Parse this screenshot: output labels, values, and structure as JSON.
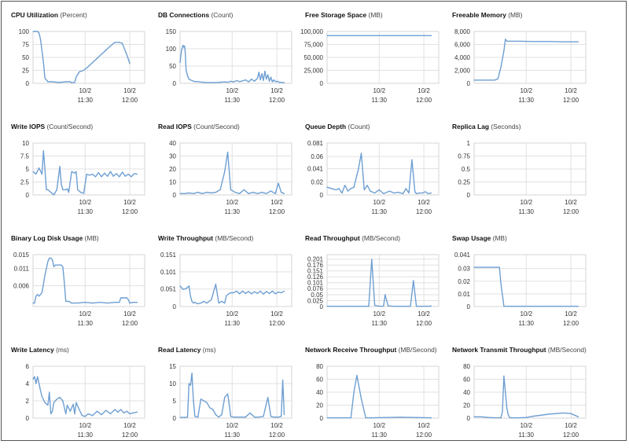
{
  "colors": {
    "series": "#6e9fd2",
    "grid": "#e1e1e1"
  },
  "x_ticks": [
    {
      "t": 35,
      "date": "10/2",
      "time": "11:30"
    },
    {
      "t": 65,
      "date": "10/2",
      "time": "12:00"
    }
  ],
  "charts": [
    {
      "title": "CPU Utilization",
      "unit": "(Percent)",
      "chart_data": {
        "type": "line",
        "xlim": [
          0,
          75
        ],
        "ylim": [
          0,
          100
        ],
        "yticks": [
          "0",
          "25",
          "50",
          "75",
          "100"
        ],
        "x": [
          0,
          3,
          4,
          5,
          7,
          8,
          10,
          13,
          16,
          19,
          22,
          25,
          26,
          28,
          29,
          31,
          34,
          37,
          40,
          43,
          46,
          49,
          52,
          55,
          58,
          60,
          63,
          65
        ],
        "y": [
          100,
          100,
          97,
          85,
          40,
          10,
          3,
          3,
          2,
          2,
          3,
          3,
          1,
          2,
          12,
          22,
          25,
          32,
          40,
          48,
          56,
          64,
          72,
          79,
          79,
          77,
          55,
          38
        ]
      }
    },
    {
      "title": "DB Connections",
      "unit": "(Count)",
      "chart_data": {
        "type": "line",
        "xlim": [
          0,
          75
        ],
        "ylim": [
          0,
          150
        ],
        "yticks": [
          "0",
          "50",
          "100",
          "150"
        ],
        "x": [
          0,
          1,
          2,
          2.5,
          3,
          3.5,
          4,
          5,
          6,
          8,
          10,
          12,
          15,
          18,
          21,
          24,
          27,
          30,
          32,
          34,
          36,
          38,
          40,
          42,
          44,
          46,
          48,
          50,
          52,
          53,
          54,
          55,
          56,
          57,
          58,
          59,
          60,
          61,
          62,
          63,
          64,
          65,
          67,
          69,
          70
        ],
        "y": [
          60,
          95,
          110,
          105,
          108,
          90,
          40,
          22,
          12,
          8,
          5,
          5,
          3,
          2,
          2,
          2,
          3,
          4,
          3,
          6,
          4,
          8,
          5,
          7,
          10,
          4,
          12,
          6,
          15,
          32,
          10,
          28,
          8,
          35,
          12,
          25,
          6,
          18,
          4,
          10,
          5,
          6,
          3,
          2,
          2
        ]
      }
    },
    {
      "title": "Free Storage Space",
      "unit": "(MB)",
      "chart_data": {
        "type": "line",
        "xlim": [
          0,
          75
        ],
        "ylim": [
          0,
          100000
        ],
        "yticks": [
          "0",
          "25,000",
          "50,000",
          "75,000",
          "100,000"
        ],
        "x": [
          0,
          70
        ],
        "y": [
          92000,
          92000
        ]
      }
    },
    {
      "title": "Freeable Memory",
      "unit": "(MB)",
      "chart_data": {
        "type": "line",
        "xlim": [
          0,
          75
        ],
        "ylim": [
          0,
          8000
        ],
        "yticks": [
          "0",
          "2,000",
          "4,000",
          "6,000",
          "8,000"
        ],
        "x": [
          0,
          14,
          16,
          18,
          20,
          21,
          22,
          24,
          30,
          40,
          50,
          60,
          70
        ],
        "y": [
          500,
          500,
          700,
          2500,
          5000,
          6800,
          6500,
          6500,
          6500,
          6450,
          6450,
          6400,
          6400
        ]
      }
    },
    {
      "title": "Write IOPS",
      "unit": "(Count/Second)",
      "chart_data": {
        "type": "line",
        "xlim": [
          0,
          75
        ],
        "ylim": [
          0,
          10
        ],
        "yticks": [
          "0",
          "2.5",
          "5",
          "7.5",
          "10"
        ],
        "x": [
          0,
          2,
          4,
          6,
          7,
          8,
          9,
          10,
          12,
          14,
          16,
          18,
          19,
          20,
          22,
          23,
          24,
          26,
          28,
          29,
          30,
          32,
          34,
          36,
          38,
          40,
          42,
          44,
          46,
          48,
          50,
          52,
          54,
          56,
          58,
          60,
          62,
          64,
          66,
          68,
          70
        ],
        "y": [
          4.5,
          4,
          5.2,
          4,
          8.5,
          5,
          1,
          1,
          0.5,
          0,
          1,
          5.5,
          2,
          1,
          1,
          1.2,
          0.5,
          4.5,
          4.2,
          4.5,
          1,
          0.5,
          0.3,
          4,
          3.8,
          4,
          3.5,
          4.3,
          3.5,
          4.2,
          3.6,
          4.5,
          3.6,
          4.1,
          3.5,
          4.4,
          3.6,
          4,
          3.5,
          4.1,
          4
        ]
      }
    },
    {
      "title": "Read IOPS",
      "unit": "(Count/Second)",
      "chart_data": {
        "type": "line",
        "xlim": [
          0,
          75
        ],
        "ylim": [
          0,
          40
        ],
        "yticks": [
          "0",
          "10",
          "20",
          "30",
          "40"
        ],
        "x": [
          0,
          3,
          6,
          9,
          12,
          15,
          18,
          21,
          24,
          27,
          30,
          32,
          34,
          37,
          40,
          43,
          46,
          49,
          52,
          55,
          58,
          61,
          64,
          66,
          68,
          70
        ],
        "y": [
          1,
          1,
          1.5,
          1,
          2,
          1,
          2,
          1.5,
          2,
          4,
          18,
          33,
          4,
          2,
          1,
          4,
          1,
          2,
          1,
          2,
          1,
          3,
          1,
          9,
          2,
          1
        ]
      }
    },
    {
      "title": "Queue Depth",
      "unit": "(Count)",
      "chart_data": {
        "type": "line",
        "xlim": [
          0,
          75
        ],
        "ylim": [
          0,
          0.081
        ],
        "yticks": [
          "0",
          "0.02",
          "0.041",
          "0.06",
          "0.081"
        ],
        "x": [
          0,
          3,
          6,
          8,
          10,
          12,
          14,
          16,
          18,
          21,
          23,
          25,
          27,
          29,
          32,
          35,
          38,
          42,
          45,
          48,
          51,
          53,
          55,
          57,
          59,
          60,
          62,
          64,
          66,
          68,
          70
        ],
        "y": [
          0.012,
          0.01,
          0.008,
          0.01,
          0.003,
          0.015,
          0.006,
          0.01,
          0.012,
          0.04,
          0.065,
          0.008,
          0.015,
          0.006,
          0.003,
          0.008,
          0.002,
          0.006,
          0.003,
          0.004,
          0.002,
          0.01,
          0.003,
          0.055,
          0.005,
          0.002,
          0.003,
          0.003,
          0.005,
          0.002,
          0.003
        ]
      }
    },
    {
      "title": "Replica Lag",
      "unit": "(Seconds)",
      "chart_data": {
        "type": "line",
        "xlim": [
          0,
          75
        ],
        "ylim": [
          0,
          1
        ],
        "yticks": [
          "0",
          "0.25",
          "0.5",
          "0.75",
          "1"
        ],
        "x": [],
        "y": []
      }
    },
    {
      "title": "Binary Log Disk Usage",
      "unit": "(MB)",
      "chart_data": {
        "type": "line",
        "xlim": [
          0,
          75
        ],
        "ylim": [
          0,
          0.015
        ],
        "yticks": [
          "0.006",
          "0.011",
          "0.015"
        ],
        "x": [
          0,
          1,
          2,
          3,
          4,
          6,
          8,
          10,
          11,
          12,
          13,
          14,
          15,
          17,
          19,
          20,
          21,
          22,
          24,
          26,
          30,
          35,
          40,
          45,
          50,
          55,
          58,
          59,
          60,
          61,
          62,
          63,
          64,
          65,
          67,
          70
        ],
        "y": [
          0.001,
          0.001,
          0.003,
          0.0035,
          0.003,
          0.004,
          0.009,
          0.013,
          0.014,
          0.014,
          0.0135,
          0.0115,
          0.012,
          0.012,
          0.012,
          0.0115,
          0.007,
          0.0015,
          0.0015,
          0.001,
          0.001,
          0.0012,
          0.001,
          0.0012,
          0.001,
          0.0012,
          0.0012,
          0.0025,
          0.0025,
          0.0025,
          0.0025,
          0.0025,
          0.002,
          0.001,
          0.0012,
          0.0012
        ]
      }
    },
    {
      "title": "Write Throughput",
      "unit": "(MB/Second)",
      "chart_data": {
        "type": "line",
        "xlim": [
          0,
          75
        ],
        "ylim": [
          0,
          0.151
        ],
        "yticks": [
          "0",
          "0.051",
          "0.101",
          "0.151"
        ],
        "x": [
          0,
          2,
          4,
          6,
          7,
          8,
          9,
          10,
          12,
          14,
          16,
          18,
          21,
          24,
          26,
          28,
          30,
          31,
          32,
          34,
          36,
          38,
          40,
          42,
          44,
          46,
          48,
          50,
          52,
          54,
          56,
          58,
          60,
          62,
          64,
          66,
          68,
          70
        ],
        "y": [
          0.06,
          0.05,
          0.052,
          0.06,
          0.03,
          0.015,
          0.01,
          0.012,
          0.008,
          0.01,
          0.015,
          0.01,
          0.02,
          0.065,
          0.01,
          0.015,
          0.01,
          0.03,
          0.035,
          0.04,
          0.04,
          0.045,
          0.037,
          0.045,
          0.038,
          0.044,
          0.037,
          0.043,
          0.038,
          0.045,
          0.036,
          0.044,
          0.038,
          0.045,
          0.037,
          0.042,
          0.04,
          0.045
        ]
      }
    },
    {
      "title": "Read Throughput",
      "unit": "(MB/Second)",
      "chart_data": {
        "type": "line",
        "xlim": [
          0,
          75
        ],
        "ylim": [
          0,
          0.22
        ],
        "yticks": [
          "0",
          "0.025",
          "0.05",
          "0.076",
          "0.101",
          "0.126",
          "0.151",
          "0.176",
          "0.201"
        ],
        "x": [
          0,
          10,
          20,
          28,
          30,
          32,
          35,
          38,
          39,
          41,
          45,
          50,
          56,
          58,
          60,
          65,
          70
        ],
        "y": [
          0.001,
          0.001,
          0.001,
          0.001,
          0.2,
          0.005,
          0.001,
          0.002,
          0.05,
          0.003,
          0.001,
          0.001,
          0.001,
          0.11,
          0.001,
          0.001,
          0.002
        ]
      }
    },
    {
      "title": "Swap Usage",
      "unit": "(MB)",
      "chart_data": {
        "type": "line",
        "xlim": [
          0,
          75
        ],
        "ylim": [
          0,
          0.041
        ],
        "yticks": [
          "0",
          "0.01",
          "0.02",
          "0.03",
          "0.041"
        ],
        "x": [
          0,
          6,
          12,
          15,
          17,
          18,
          20,
          30,
          45,
          70
        ],
        "y": [
          0.031,
          0.031,
          0.031,
          0.031,
          0.031,
          0.018,
          0.0002,
          0.0002,
          0.0002,
          0.0002
        ]
      }
    },
    {
      "title": "Write Latency",
      "unit": "(ms)",
      "chart_data": {
        "type": "line",
        "xlim": [
          0,
          75
        ],
        "ylim": [
          0,
          6
        ],
        "yticks": [
          "0",
          "2",
          "4",
          "6"
        ],
        "x": [
          0,
          1,
          2,
          3,
          5,
          6,
          8,
          10,
          11,
          12,
          13,
          14,
          16,
          18,
          20,
          22,
          23,
          25,
          27,
          28,
          29,
          31,
          33,
          35,
          37,
          40,
          43,
          46,
          49,
          52,
          55,
          57,
          59,
          61,
          63,
          65,
          67,
          70
        ],
        "y": [
          4.5,
          4.8,
          4,
          4.8,
          3.2,
          2.5,
          1.8,
          1.5,
          3,
          0.5,
          0.8,
          1.8,
          2.2,
          2.4,
          2,
          0.5,
          1.5,
          0.8,
          1.6,
          0.5,
          1.8,
          1,
          0.3,
          0.2,
          0.5,
          0.3,
          0.8,
          0.4,
          0.9,
          0.5,
          1,
          0.7,
          1,
          0.6,
          0.8,
          0.5,
          0.6,
          0.7
        ]
      }
    },
    {
      "title": "Read Latency",
      "unit": "(ms)",
      "chart_data": {
        "type": "line",
        "xlim": [
          0,
          75
        ],
        "ylim": [
          0,
          15
        ],
        "yticks": [
          "0",
          "5",
          "10",
          "15"
        ],
        "x": [
          0,
          3,
          5,
          6,
          7,
          8,
          9,
          10,
          12,
          14,
          16,
          18,
          20,
          22,
          24,
          26,
          28,
          30,
          32,
          33,
          34,
          36,
          38,
          41,
          44,
          47,
          50,
          53,
          56,
          59,
          61,
          63,
          66,
          68,
          69,
          70
        ],
        "y": [
          0.2,
          0.2,
          0.3,
          10,
          9.5,
          13,
          5,
          0.5,
          0.3,
          5.5,
          5,
          4.5,
          3,
          2.5,
          1,
          0.3,
          1,
          6,
          7,
          4,
          0.5,
          0.3,
          0.3,
          0.3,
          0.3,
          1.5,
          0.3,
          0.3,
          0.5,
          6,
          0.5,
          0.3,
          0.3,
          0.5,
          11,
          1
        ]
      }
    },
    {
      "title": "Network Receive Throughput",
      "unit": "(MB/Second)",
      "chart_data": {
        "type": "line",
        "xlim": [
          0,
          75
        ],
        "ylim": [
          0,
          80
        ],
        "yticks": [
          "0",
          "20",
          "40",
          "60",
          "80"
        ],
        "x": [
          0,
          10,
          16,
          18,
          20,
          23,
          26,
          30,
          40,
          50,
          60,
          70
        ],
        "y": [
          0.5,
          0.5,
          0.5,
          40,
          66,
          30,
          0.5,
          0.5,
          1,
          1.5,
          1,
          0.5
        ]
      }
    },
    {
      "title": "Network Transmit Throughput",
      "unit": "(MB/Second)",
      "chart_data": {
        "type": "line",
        "xlim": [
          0,
          75
        ],
        "ylim": [
          0,
          80
        ],
        "yticks": [
          "0",
          "20",
          "40",
          "60",
          "80"
        ],
        "x": [
          0,
          5,
          10,
          15,
          18,
          19,
          20,
          21,
          22,
          23,
          24,
          25,
          30,
          35,
          40,
          50,
          60,
          65,
          70
        ],
        "y": [
          2,
          2,
          1,
          0.5,
          0.5,
          10,
          65,
          40,
          15,
          5,
          0.5,
          0.5,
          0.5,
          1,
          3,
          6,
          8,
          7,
          2
        ]
      }
    }
  ]
}
